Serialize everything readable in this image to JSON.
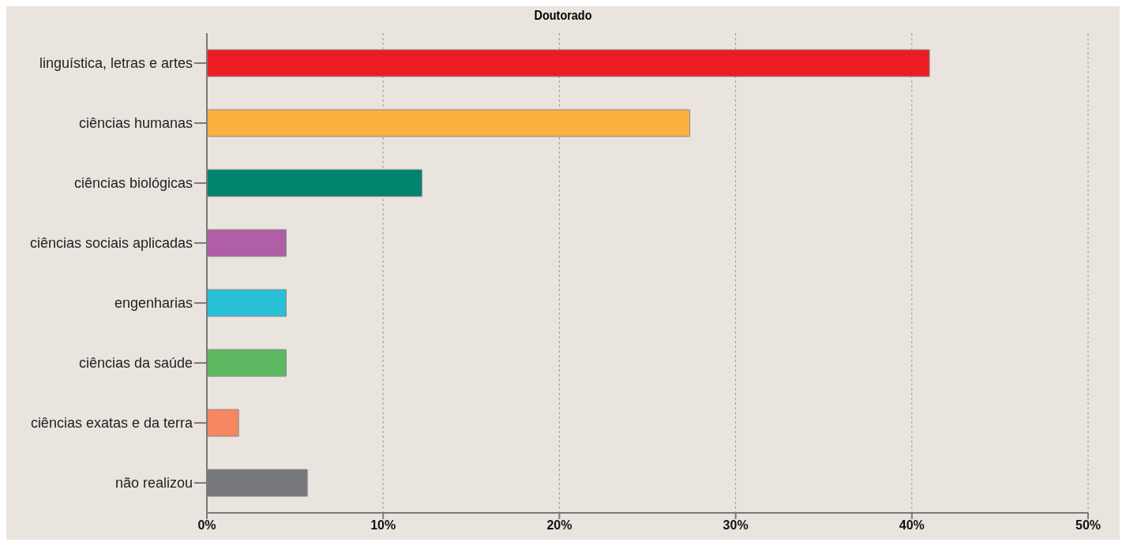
{
  "chart_data": {
    "type": "bar",
    "orientation": "horizontal",
    "title": "Doutorado",
    "categories": [
      "linguística, letras e artes",
      "ciências humanas",
      "ciências biológicas",
      "ciências sociais aplicadas",
      "engenharias",
      "ciências da saúde",
      "ciências exatas e da terra",
      "não realizou"
    ],
    "values": [
      41.0,
      27.4,
      12.2,
      4.5,
      4.5,
      4.5,
      1.8,
      5.7
    ],
    "colors": [
      "#ed1c24",
      "#fbb040",
      "#00836f",
      "#b05ea5",
      "#29c0d6",
      "#5cb962",
      "#f58762",
      "#77787b"
    ],
    "xlim": [
      0,
      50
    ],
    "xticks": [
      {
        "value": 0,
        "label": "0%"
      },
      {
        "value": 10,
        "label": "10%"
      },
      {
        "value": 20,
        "label": "20%"
      },
      {
        "value": 30,
        "label": "30%"
      },
      {
        "value": 40,
        "label": "40%"
      },
      {
        "value": 50,
        "label": "50%"
      }
    ],
    "grid": "x"
  }
}
